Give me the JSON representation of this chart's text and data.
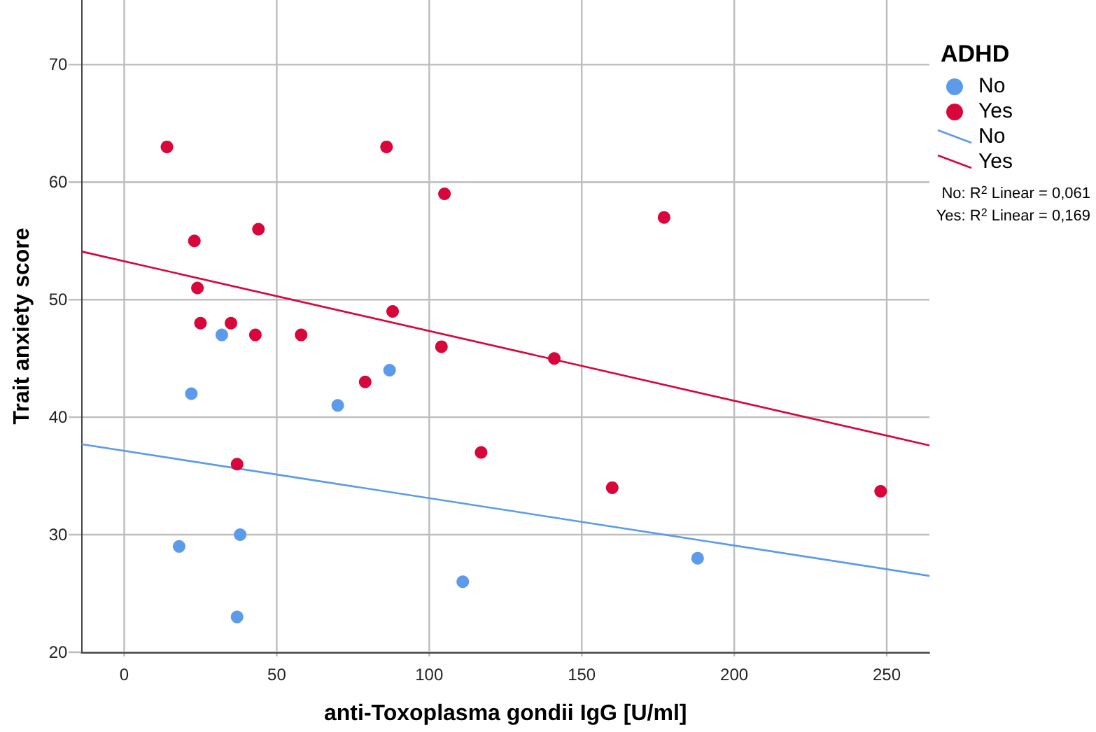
{
  "chart_data": {
    "type": "scatter",
    "xlabel": "anti-Toxoplasma gondii IgG [U/ml]",
    "ylabel": "Trait anxiety score",
    "legend_title": "ADHD",
    "xlim": [
      -14,
      264
    ],
    "xticks": [
      0,
      50,
      100,
      150,
      200,
      250
    ],
    "ylim": [
      20,
      75.5
    ],
    "yticks": [
      20,
      30,
      40,
      50,
      60,
      70
    ],
    "grid": true,
    "legend": "top right",
    "marker": "circle",
    "series": [
      {
        "name": "No",
        "type": "scatter",
        "color": "#5b9bea",
        "x": [
          32,
          22,
          70,
          87,
          18,
          38,
          37,
          111,
          188
        ],
        "values": [
          47,
          42,
          41,
          44,
          29,
          30,
          23,
          26,
          28
        ]
      },
      {
        "name": "Yes",
        "type": "scatter",
        "color": "#d8063a",
        "x": [
          14,
          86,
          105,
          44,
          23,
          24,
          25,
          35,
          43,
          58,
          88,
          104,
          79,
          141,
          177,
          37,
          117,
          160,
          248
        ],
        "values": [
          63,
          63,
          59,
          56,
          55,
          51,
          48,
          48,
          47,
          47,
          49,
          46,
          43,
          45,
          57,
          36,
          37,
          34,
          33.7
        ]
      },
      {
        "name": "No",
        "type": "line",
        "marker": "none",
        "color": "#5b9bea",
        "x": [
          -14,
          264
        ],
        "values": [
          37.7,
          26.5
        ]
      },
      {
        "name": "Yes",
        "type": "line",
        "marker": "none",
        "color": "#d8063a",
        "x": [
          -14,
          264
        ],
        "values": [
          54.1,
          37.6
        ]
      }
    ],
    "annotations": [
      "No: R$^{2}$ Linear = 0,061",
      "Yes: R$^{2}$ Linear = 0,169"
    ]
  }
}
